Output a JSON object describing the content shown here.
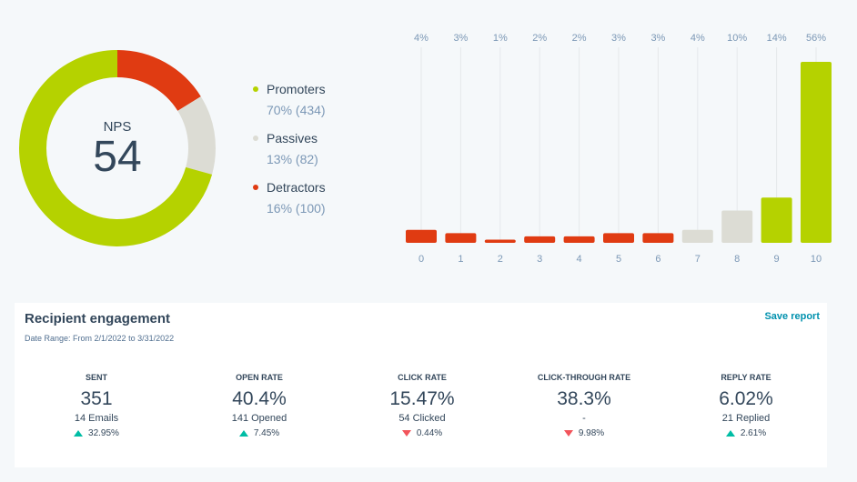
{
  "colors": {
    "promoters": "#b5d200",
    "passives": "#dcdcd4",
    "detractors": "#e03b12",
    "accent_link": "#0091ae",
    "up": "#00bda5",
    "down": "#f2545b"
  },
  "nps": {
    "label": "NPS",
    "value": "54",
    "segments": [
      {
        "key": "promoters",
        "fraction": 0.7
      },
      {
        "key": "passives",
        "fraction": 0.13
      },
      {
        "key": "detractors",
        "fraction": 0.16
      }
    ]
  },
  "legend": [
    {
      "name": "Promoters",
      "sub": "70% (434)",
      "color_key": "promoters"
    },
    {
      "name": "Passives",
      "sub": "13% (82)",
      "color_key": "passives"
    },
    {
      "name": "Detractors",
      "sub": "16% (100)",
      "color_key": "detractors"
    }
  ],
  "chart_data": {
    "type": "bar",
    "categories": [
      "0",
      "1",
      "2",
      "3",
      "4",
      "5",
      "6",
      "7",
      "8",
      "9",
      "10"
    ],
    "values": [
      4,
      3,
      1,
      2,
      2,
      3,
      3,
      4,
      10,
      14,
      56
    ],
    "value_labels": [
      "4%",
      "3%",
      "1%",
      "2%",
      "2%",
      "3%",
      "3%",
      "4%",
      "10%",
      "14%",
      "56%"
    ],
    "bar_groups": [
      "detractors",
      "detractors",
      "detractors",
      "detractors",
      "detractors",
      "detractors",
      "detractors",
      "passives",
      "passives",
      "promoters",
      "promoters"
    ],
    "ylim": [
      0,
      56
    ]
  },
  "engagement": {
    "title": "Recipient engagement",
    "save_label": "Save report",
    "date_range": "Date Range: From 2/1/2022 to 3/31/2022",
    "metrics": [
      {
        "label": "SENT",
        "value": "351",
        "sub": "14 Emails",
        "change": "32.95%",
        "direction": "up"
      },
      {
        "label": "OPEN RATE",
        "value": "40.4%",
        "sub": "141 Opened",
        "change": "7.45%",
        "direction": "up"
      },
      {
        "label": "CLICK RATE",
        "value": "15.47%",
        "sub": "54 Clicked",
        "change": "0.44%",
        "direction": "down"
      },
      {
        "label": "CLICK-THROUGH RATE",
        "value": "38.3%",
        "sub": "-",
        "change": "9.98%",
        "direction": "down"
      },
      {
        "label": "REPLY RATE",
        "value": "6.02%",
        "sub": "21 Replied",
        "change": "2.61%",
        "direction": "up"
      }
    ]
  }
}
